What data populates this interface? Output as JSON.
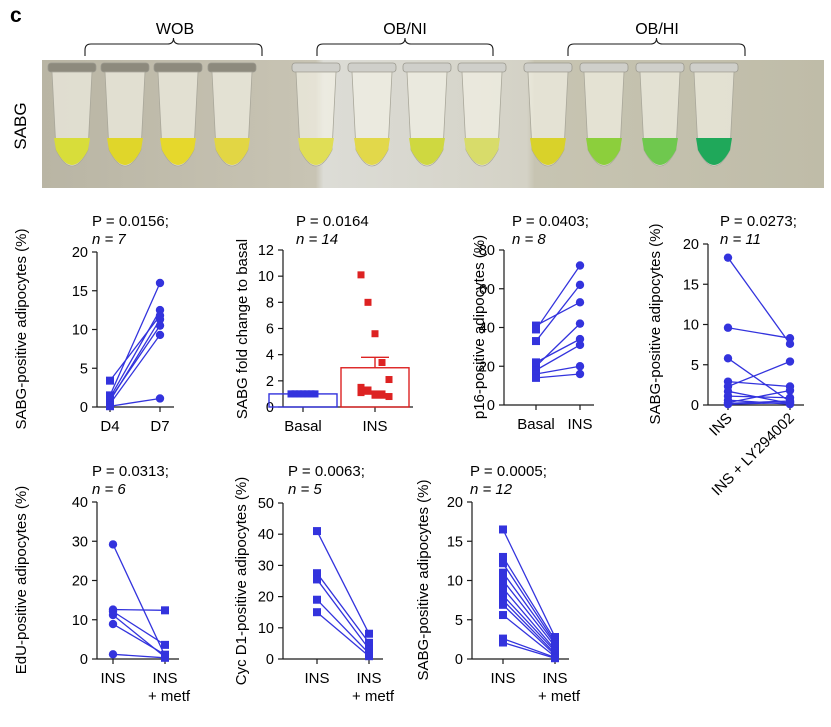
{
  "panel_letter": "c",
  "photo": {
    "row_label": "SABG",
    "groups": [
      {
        "label": "WOB",
        "tube_colors": [
          "#d8dd3a",
          "#e0d62a",
          "#e6d82c",
          "#e2d644"
        ]
      },
      {
        "label": "OB/NI",
        "tube_colors": [
          "#e0de55",
          "#e2d84a",
          "#cfd840",
          "#d8dc6a"
        ]
      },
      {
        "label": "OB/HI",
        "tube_colors": [
          "#d9d22a",
          "#8ccf3c",
          "#6fc84e",
          "#1fa85a"
        ]
      }
    ]
  },
  "colors": {
    "series": "#3333dd",
    "red": "#dd2222",
    "axis": "#1a1a1a"
  },
  "chart_data": [
    {
      "id": "c1",
      "type": "paired-line",
      "stat": "P = 0.0156;",
      "n_label": "n = 7",
      "ylabel": "SABG-positive adipocytes (%)",
      "ylim": [
        0,
        20
      ],
      "yticks": [
        "0",
        "5",
        "10",
        "15",
        "20"
      ],
      "categories": [
        "D4",
        "D7"
      ],
      "rotated_xticks": false,
      "marker_left": "square",
      "marker_right": "circle",
      "pairs": [
        [
          0.1,
          1.1
        ],
        [
          0.4,
          9.3
        ],
        [
          0.8,
          11.3
        ],
        [
          1.0,
          10.5
        ],
        [
          1.2,
          12.5
        ],
        [
          1.5,
          16.0
        ],
        [
          3.4,
          11.8
        ]
      ]
    },
    {
      "id": "c2",
      "type": "bar",
      "stat": "P = 0.0164",
      "n_label": "n = 14",
      "ylabel": "SABG fold change to basal",
      "ylim": [
        0,
        12
      ],
      "yticks": [
        "0",
        "2",
        "4",
        "6",
        "8",
        "10",
        "12"
      ],
      "categories": [
        "Basal",
        "INS"
      ],
      "values": [
        1.0,
        3.0
      ],
      "errors": [
        0.05,
        0.8
      ],
      "points": [
        [
          1.0,
          1.0,
          1.0,
          1.0,
          1.0,
          1.0,
          1.0,
          1.0,
          1.0,
          1.0,
          1.0,
          1.0,
          1.0,
          1.0
        ],
        [
          10.1,
          8.0,
          5.6,
          3.4,
          2.1,
          1.5,
          1.2,
          1.0,
          0.9,
          0.8,
          1.1,
          1.3,
          0.9,
          1.0
        ]
      ]
    },
    {
      "id": "c3",
      "type": "paired-line",
      "stat": "P = 0.0403;",
      "n_label": "n = 8",
      "ylabel": "p16-positive adipocytes (%)",
      "ylim": [
        0,
        80
      ],
      "yticks": [
        "0",
        "20",
        "40",
        "60",
        "80"
      ],
      "categories": [
        "Basal",
        "INS"
      ],
      "rotated_xticks": false,
      "marker_left": "square",
      "marker_right": "circle",
      "pairs": [
        [
          14,
          16
        ],
        [
          16,
          20
        ],
        [
          18,
          31
        ],
        [
          20,
          42
        ],
        [
          22,
          34
        ],
        [
          33,
          62
        ],
        [
          41,
          53
        ],
        [
          39,
          72
        ]
      ]
    },
    {
      "id": "c4",
      "type": "paired-line",
      "stat": "P = 0.0273;",
      "n_label": "n = 11",
      "ylabel": "SABG-positive adipocytes (%)",
      "ylim": [
        0,
        20
      ],
      "yticks": [
        "0",
        "5",
        "10",
        "15",
        "20"
      ],
      "categories": [
        "INS",
        "INS + LY294002"
      ],
      "rotated_xticks": true,
      "marker_left": "circle",
      "marker_right": "circle",
      "pairs": [
        [
          18.3,
          7.6
        ],
        [
          9.6,
          8.3
        ],
        [
          5.8,
          0.4
        ],
        [
          2.9,
          2.3
        ],
        [
          2.3,
          5.4
        ],
        [
          1.7,
          0.2
        ],
        [
          1.1,
          0.9
        ],
        [
          0.6,
          0.1
        ],
        [
          0.3,
          1.8
        ],
        [
          0.2,
          0.5
        ],
        [
          0.1,
          0.3
        ]
      ]
    },
    {
      "id": "c5",
      "type": "paired-line",
      "stat": "P = 0.0313;",
      "n_label": "n = 6",
      "ylabel": "EdU-positive adipocytes (%)",
      "ylim": [
        0,
        40
      ],
      "yticks": [
        "0",
        "10",
        "20",
        "30",
        "40"
      ],
      "categories": [
        "INS",
        "INS\n+ metf"
      ],
      "rotated_xticks": false,
      "marker_left": "circle",
      "marker_right": "square",
      "pairs": [
        [
          29.2,
          0.8
        ],
        [
          12.6,
          12.4
        ],
        [
          12.1,
          3.6
        ],
        [
          11.2,
          0.5
        ],
        [
          8.9,
          1.1
        ],
        [
          1.2,
          0.3
        ]
      ]
    },
    {
      "id": "c6",
      "type": "paired-line",
      "stat": "P = 0.0063;",
      "n_label": "n = 5",
      "ylabel": "Cyc D1-positive adipocytes (%)",
      "ylim": [
        0,
        50
      ],
      "yticks": [
        "0",
        "10",
        "20",
        "30",
        "40",
        "50"
      ],
      "categories": [
        "INS",
        "INS\n+ metf"
      ],
      "rotated_xticks": false,
      "marker_left": "square",
      "marker_right": "square",
      "pairs": [
        [
          41.0,
          8.1
        ],
        [
          27.5,
          5.2
        ],
        [
          25.5,
          3.2
        ],
        [
          19.0,
          1.8
        ],
        [
          15.0,
          0.9
        ]
      ]
    },
    {
      "id": "c7",
      "type": "paired-line",
      "stat": "P = 0.0005;",
      "n_label": "n = 12",
      "ylabel": "SABG-positive adipocytes (%)",
      "ylim": [
        0,
        20
      ],
      "yticks": [
        "0",
        "5",
        "10",
        "15",
        "20"
      ],
      "categories": [
        "INS",
        "INS\n+ metf"
      ],
      "rotated_xticks": false,
      "marker_left": "square",
      "marker_right": "square",
      "pairs": [
        [
          16.5,
          2.8
        ],
        [
          13.0,
          2.4
        ],
        [
          12.2,
          2.1
        ],
        [
          11.0,
          1.9
        ],
        [
          10.0,
          1.6
        ],
        [
          9.0,
          1.2
        ],
        [
          8.1,
          1.0
        ],
        [
          7.5,
          0.7
        ],
        [
          6.9,
          0.5
        ],
        [
          5.6,
          0.3
        ],
        [
          2.6,
          0.2
        ],
        [
          2.1,
          0.1
        ]
      ]
    }
  ]
}
